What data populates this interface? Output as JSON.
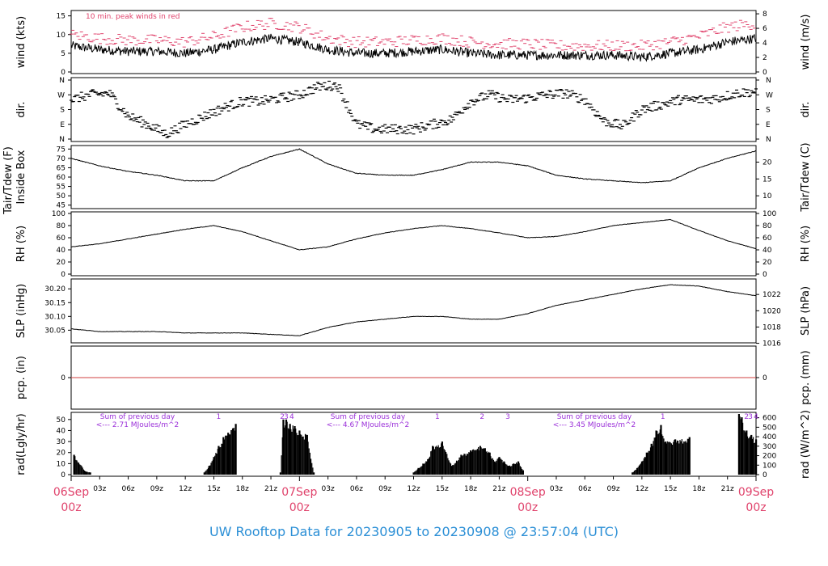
{
  "footer": {
    "prefix": "UW Rooftop Data for",
    "start": "20230905",
    "to": "to",
    "end": "20230908",
    "at": "@ 23:57:04",
    "tz": "(UTC)"
  },
  "colors": {
    "peak": "#e0436c",
    "annotation": "#9b30d9",
    "dayLabel": "#e0436c",
    "zeroLine": "#d04040",
    "footer": "#2b8fd6"
  },
  "chart_data": {
    "type": "line",
    "time_axis": {
      "start": "2023-09-06 00z",
      "end": "2023-09-09 00z",
      "hour_ticks": [
        "03z",
        "06z",
        "09z",
        "12z",
        "15z",
        "18z",
        "21z",
        "03z",
        "06z",
        "09z",
        "12z",
        "15z",
        "18z",
        "21z",
        "03z",
        "06z",
        "09z",
        "12z",
        "15z",
        "18z",
        "21z"
      ],
      "day_labels": [
        {
          "date": "06Sep",
          "z": "00z"
        },
        {
          "date": "07Sep",
          "z": "00z"
        },
        {
          "date": "08Sep",
          "z": "00z"
        },
        {
          "date": "09Sep",
          "z": "00z"
        }
      ]
    },
    "panels": [
      {
        "id": "wind",
        "left_label": "wind (kts)",
        "right_label": "wind (m/s)",
        "left_ticks": [
          0,
          5,
          10,
          15
        ],
        "right_ticks": [
          0,
          2,
          4,
          6,
          8
        ],
        "ylim": [
          0,
          16
        ],
        "annotation": "10 min. peak winds in red",
        "series": [
          {
            "name": "wind",
            "color": "#000000",
            "hours": [
              0,
              3,
              6,
              9,
              12,
              15,
              18,
              21,
              24,
              27,
              30,
              33,
              36,
              39,
              42,
              45,
              48,
              51,
              54,
              57,
              60,
              63,
              66,
              69,
              72
            ],
            "values": [
              7,
              6,
              5.5,
              5.5,
              5,
              6,
              8,
              9,
              8,
              6,
              5,
              5,
              5.5,
              6,
              5,
              4.5,
              4.5,
              4.5,
              4.5,
              4.5,
              4,
              5,
              6,
              8,
              9
            ]
          },
          {
            "name": "peak",
            "color": "#e0436c",
            "hours": [
              0,
              3,
              6,
              9,
              12,
              15,
              18,
              21,
              24,
              27,
              30,
              33,
              36,
              39,
              42,
              45,
              48,
              51,
              54,
              57,
              60,
              63,
              66,
              69,
              72
            ],
            "values": [
              10,
              9,
              8.5,
              8.5,
              8,
              9.5,
              12,
              13,
              12,
              9,
              8,
              8,
              8.5,
              9,
              8,
              7.5,
              7.5,
              7,
              7,
              7,
              7,
              8,
              9.5,
              12,
              13
            ]
          }
        ]
      },
      {
        "id": "dir",
        "left_label": "dir.",
        "right_label": "dir.",
        "left_ticks": [
          "N",
          "E",
          "S",
          "W",
          "N"
        ],
        "right_ticks": [
          "N",
          "E",
          "S",
          "W",
          "N"
        ],
        "ylim": [
          0,
          360
        ],
        "series": [
          {
            "name": "direction",
            "hours": [
              0,
              2,
              4,
              6,
              8,
              10,
              12,
              14,
              16,
              18,
              20,
              22,
              24,
              26,
              28,
              30,
              32,
              34,
              36,
              38,
              40,
              42,
              44,
              46,
              48,
              50,
              52,
              54,
              56,
              58,
              60,
              62,
              64,
              66,
              68,
              70,
              72
            ],
            "values": [
              240,
              270,
              280,
              140,
              90,
              30,
              90,
              140,
              190,
              230,
              230,
              250,
              270,
              320,
              330,
              90,
              60,
              60,
              60,
              90,
              120,
              230,
              270,
              240,
              250,
              270,
              280,
              240,
              110,
              80,
              180,
              210,
              240,
              240,
              250,
              280,
              290
            ]
          }
        ]
      },
      {
        "id": "temp",
        "left_label": "Tair/Tdew (F)",
        "left_label2": "Inside Box",
        "right_label": "Tair/Tdew (C)",
        "left_ticks": [
          45,
          50,
          55,
          60,
          65,
          70,
          75
        ],
        "right_ticks": [
          10,
          15,
          20
        ],
        "ylim": [
          44,
          76
        ],
        "series": [
          {
            "name": "Tair",
            "hours": [
              0,
              3,
              6,
              9,
              12,
              15,
              18,
              21,
              24,
              27,
              30,
              33,
              36,
              39,
              42,
              45,
              48,
              51,
              54,
              57,
              60,
              63,
              66,
              69,
              72
            ],
            "values": [
              70,
              66,
              63,
              61,
              58,
              58,
              65,
              71,
              75,
              67,
              62,
              61,
              61,
              64,
              68,
              68,
              66,
              61,
              59,
              58,
              57,
              58,
              65,
              70,
              74
            ]
          }
        ]
      },
      {
        "id": "rh",
        "left_label": "RH (%)",
        "right_label": "RH (%)",
        "left_ticks": [
          0,
          20,
          40,
          60,
          80,
          100
        ],
        "right_ticks": [
          0,
          20,
          40,
          60,
          80,
          100
        ],
        "ylim": [
          0,
          100
        ],
        "series": [
          {
            "name": "RH",
            "hours": [
              0,
              3,
              6,
              9,
              12,
              15,
              18,
              21,
              24,
              27,
              30,
              33,
              36,
              39,
              42,
              45,
              48,
              51,
              54,
              57,
              60,
              63,
              66,
              69,
              72
            ],
            "values": [
              45,
              50,
              58,
              66,
              74,
              80,
              70,
              55,
              40,
              45,
              58,
              68,
              75,
              80,
              75,
              68,
              60,
              62,
              70,
              80,
              85,
              90,
              72,
              55,
              42
            ]
          }
        ]
      },
      {
        "id": "slp",
        "left_label": "SLP (inHg)",
        "right_label": "SLP (hPa)",
        "left_ticks": [
          30.05,
          30.1,
          30.15,
          30.2
        ],
        "right_ticks": [
          1016,
          1018,
          1020,
          1022
        ],
        "ylim": [
          30.01,
          30.23
        ],
        "series": [
          {
            "name": "SLP",
            "hours": [
              0,
              3,
              6,
              9,
              12,
              15,
              18,
              21,
              24,
              27,
              30,
              33,
              36,
              39,
              42,
              45,
              48,
              51,
              54,
              57,
              60,
              63,
              66,
              69,
              72
            ],
            "values": [
              30.055,
              30.045,
              30.045,
              30.045,
              30.04,
              30.04,
              30.04,
              30.035,
              30.03,
              30.06,
              30.08,
              30.09,
              30.1,
              30.1,
              30.09,
              30.09,
              30.11,
              30.14,
              30.16,
              30.18,
              30.2,
              30.215,
              30.21,
              30.19,
              30.175
            ]
          }
        ]
      },
      {
        "id": "pcp",
        "left_label": "pcp. (in)",
        "right_label": "pcp. (mm)",
        "left_ticks": [
          0
        ],
        "right_ticks": [
          0
        ],
        "values": [
          0
        ]
      },
      {
        "id": "rad",
        "left_label": "rad(Lgly/hr)",
        "right_label": "rad (W/m^2)",
        "left_ticks": [
          0,
          10,
          20,
          30,
          40,
          50
        ],
        "right_ticks": [
          0,
          100,
          200,
          300,
          400,
          500,
          600
        ],
        "ylim": [
          0,
          55
        ],
        "annotations": [
          {
            "line1": "Sum of previous day",
            "line2": "<--- 2.71 MJoules/m^2"
          },
          {
            "line1": "Sum of previous day",
            "line2": "<--- 4.67 MJoules/m^2"
          },
          {
            "line1": "Sum of previous day",
            "line2": "<--- 3.45 MJoules/m^2"
          }
        ],
        "markers": [
          {
            "hour": 15.5,
            "label": "1"
          },
          {
            "hour": 22.2,
            "label": "2"
          },
          {
            "hour": 22.6,
            "label": "3"
          },
          {
            "hour": 23.2,
            "label": "4"
          },
          {
            "hour": 38.5,
            "label": "1"
          },
          {
            "hour": 43.2,
            "label": "2"
          },
          {
            "hour": 45.9,
            "label": "3"
          },
          {
            "hour": 62.2,
            "label": "1"
          },
          {
            "hour": 71.0,
            "label": "2"
          },
          {
            "hour": 71.4,
            "label": "3"
          },
          {
            "hour": 72.0,
            "label": "4"
          }
        ],
        "series": [
          {
            "name": "radiation",
            "hours": [
              0.3,
              1.5,
              2,
              14,
              14.5,
              15,
              15.5,
              16,
              16.5,
              17,
              17.3,
              22,
              22.3,
              22.6,
              23,
              23.5,
              24,
              24.8,
              25.5,
              36,
              36.5,
              37,
              37.5,
              38,
              39,
              40,
              41,
              42,
              43,
              43.5,
              44,
              44.5,
              45,
              45.5,
              46,
              46.5,
              47,
              47.5,
              59,
              59.5,
              60,
              60.5,
              61,
              61.5,
              62,
              62.5,
              63.5,
              65,
              70.2,
              70.5,
              71,
              71.5,
              72
            ],
            "values": [
              18,
              3,
              2,
              2,
              8,
              16,
              26,
              34,
              38,
              42,
              46,
              2,
              50,
              50,
              46,
              44,
              40,
              36,
              2,
              2,
              6,
              10,
              14,
              26,
              30,
              8,
              18,
              22,
              26,
              24,
              20,
              12,
              16,
              12,
              8,
              10,
              12,
              4,
              2,
              6,
              12,
              20,
              28,
              40,
              45,
              30,
              32,
              34,
              55,
              52,
              40,
              36,
              32
            ]
          }
        ]
      }
    ]
  }
}
